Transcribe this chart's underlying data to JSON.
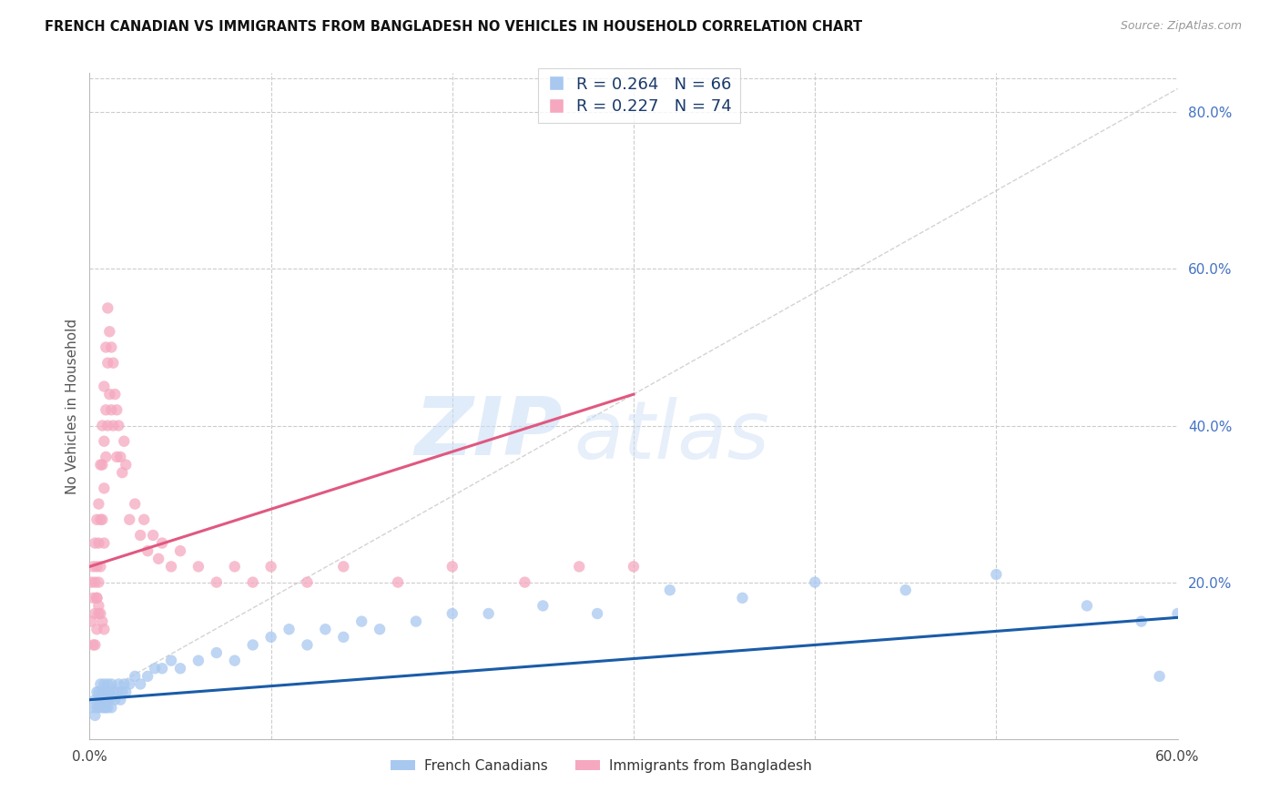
{
  "title": "FRENCH CANADIAN VS IMMIGRANTS FROM BANGLADESH NO VEHICLES IN HOUSEHOLD CORRELATION CHART",
  "source": "Source: ZipAtlas.com",
  "ylabel": "No Vehicles in Household",
  "xlim": [
    0.0,
    0.6
  ],
  "ylim": [
    0.0,
    0.85
  ],
  "blue_R": 0.264,
  "blue_N": 66,
  "pink_R": 0.227,
  "pink_N": 74,
  "blue_color": "#a8c8f0",
  "pink_color": "#f5a8bf",
  "blue_line_color": "#1a5ca8",
  "pink_line_color": "#e05880",
  "dashed_line_color": "#c8c8c8",
  "watermark_zip": "ZIP",
  "watermark_atlas": "atlas",
  "background_color": "#ffffff",
  "grid_color": "#cccccc",
  "blue_x": [
    0.002,
    0.003,
    0.003,
    0.004,
    0.004,
    0.005,
    0.005,
    0.005,
    0.006,
    0.006,
    0.007,
    0.007,
    0.007,
    0.008,
    0.008,
    0.008,
    0.009,
    0.009,
    0.01,
    0.01,
    0.01,
    0.011,
    0.011,
    0.012,
    0.012,
    0.013,
    0.014,
    0.015,
    0.016,
    0.017,
    0.018,
    0.019,
    0.02,
    0.022,
    0.025,
    0.028,
    0.032,
    0.036,
    0.04,
    0.045,
    0.05,
    0.06,
    0.07,
    0.08,
    0.09,
    0.1,
    0.11,
    0.12,
    0.13,
    0.14,
    0.15,
    0.16,
    0.18,
    0.2,
    0.22,
    0.25,
    0.28,
    0.32,
    0.36,
    0.4,
    0.45,
    0.5,
    0.55,
    0.58,
    0.6,
    0.59
  ],
  "blue_y": [
    0.04,
    0.05,
    0.03,
    0.04,
    0.06,
    0.05,
    0.04,
    0.06,
    0.05,
    0.07,
    0.04,
    0.06,
    0.05,
    0.04,
    0.07,
    0.05,
    0.06,
    0.04,
    0.05,
    0.07,
    0.04,
    0.06,
    0.05,
    0.07,
    0.04,
    0.06,
    0.05,
    0.06,
    0.07,
    0.05,
    0.06,
    0.07,
    0.06,
    0.07,
    0.08,
    0.07,
    0.08,
    0.09,
    0.09,
    0.1,
    0.09,
    0.1,
    0.11,
    0.1,
    0.12,
    0.13,
    0.14,
    0.12,
    0.14,
    0.13,
    0.15,
    0.14,
    0.15,
    0.16,
    0.16,
    0.17,
    0.16,
    0.19,
    0.18,
    0.2,
    0.19,
    0.21,
    0.17,
    0.15,
    0.16,
    0.08
  ],
  "pink_x": [
    0.001,
    0.001,
    0.002,
    0.002,
    0.002,
    0.003,
    0.003,
    0.003,
    0.003,
    0.004,
    0.004,
    0.004,
    0.004,
    0.005,
    0.005,
    0.005,
    0.005,
    0.006,
    0.006,
    0.006,
    0.007,
    0.007,
    0.007,
    0.008,
    0.008,
    0.008,
    0.008,
    0.009,
    0.009,
    0.009,
    0.01,
    0.01,
    0.01,
    0.011,
    0.011,
    0.012,
    0.012,
    0.013,
    0.013,
    0.014,
    0.015,
    0.015,
    0.016,
    0.017,
    0.018,
    0.019,
    0.02,
    0.022,
    0.025,
    0.028,
    0.03,
    0.032,
    0.035,
    0.038,
    0.04,
    0.045,
    0.05,
    0.06,
    0.07,
    0.08,
    0.09,
    0.1,
    0.12,
    0.14,
    0.17,
    0.2,
    0.24,
    0.27,
    0.3,
    0.004,
    0.005,
    0.006,
    0.007,
    0.008
  ],
  "pink_y": [
    0.2,
    0.15,
    0.22,
    0.18,
    0.12,
    0.25,
    0.2,
    0.16,
    0.12,
    0.28,
    0.22,
    0.18,
    0.14,
    0.3,
    0.25,
    0.2,
    0.16,
    0.35,
    0.28,
    0.22,
    0.4,
    0.35,
    0.28,
    0.45,
    0.38,
    0.32,
    0.25,
    0.5,
    0.42,
    0.36,
    0.55,
    0.48,
    0.4,
    0.52,
    0.44,
    0.5,
    0.42,
    0.48,
    0.4,
    0.44,
    0.42,
    0.36,
    0.4,
    0.36,
    0.34,
    0.38,
    0.35,
    0.28,
    0.3,
    0.26,
    0.28,
    0.24,
    0.26,
    0.23,
    0.25,
    0.22,
    0.24,
    0.22,
    0.2,
    0.22,
    0.2,
    0.22,
    0.2,
    0.22,
    0.2,
    0.22,
    0.2,
    0.22,
    0.22,
    0.18,
    0.17,
    0.16,
    0.15,
    0.14
  ],
  "pink_line_x0": 0.0,
  "pink_line_y0": 0.22,
  "pink_line_x1": 0.3,
  "pink_line_y1": 0.44,
  "blue_line_x0": 0.0,
  "blue_line_y0": 0.05,
  "blue_line_x1": 0.6,
  "blue_line_y1": 0.155,
  "dash_line_x0": 0.0,
  "dash_line_y0": 0.05,
  "dash_line_x1": 0.6,
  "dash_line_y1": 0.83
}
